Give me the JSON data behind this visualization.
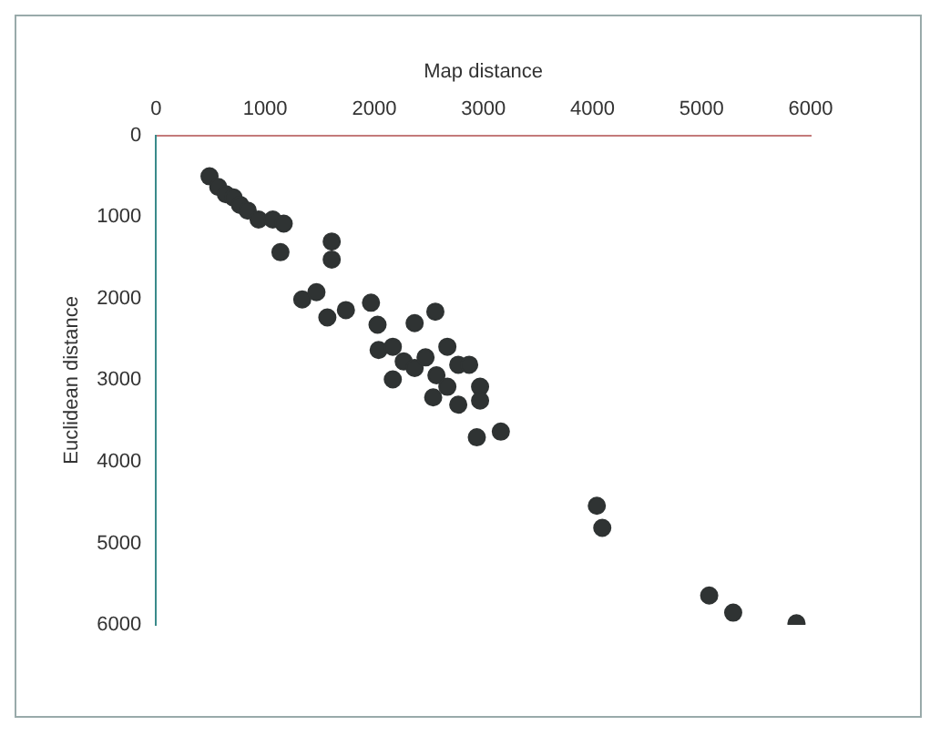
{
  "chart_data": {
    "type": "scatter",
    "xlabel": "Map distance",
    "ylabel": "Euclidean distance",
    "xlim": [
      0,
      6000
    ],
    "xticks": [
      0,
      1000,
      2000,
      3000,
      4000,
      5000,
      6000
    ],
    "ylim": [
      6000,
      0
    ],
    "yticks": [
      0,
      1000,
      2000,
      3000,
      4000,
      5000,
      6000
    ],
    "grid": false,
    "legend": false,
    "marker": "circle",
    "series": [
      {
        "color": "#2f3333",
        "x": [
          490,
          570,
          640,
          710,
          770,
          840,
          940,
          1070,
          1170,
          1140,
          1610,
          1610,
          1340,
          1470,
          1570,
          1740,
          1970,
          2030,
          2370,
          2560,
          2040,
          2170,
          2270,
          2170,
          2370,
          2470,
          2670,
          2570,
          2770,
          2870,
          2670,
          2540,
          2770,
          2970,
          2970,
          2940,
          3160,
          4040,
          4090,
          5070,
          5290,
          5870
        ],
        "values": [
          500,
          630,
          720,
          760,
          850,
          920,
          1030,
          1030,
          1080,
          1430,
          1300,
          1520,
          2010,
          1920,
          2230,
          2140,
          2050,
          2320,
          2300,
          2160,
          2630,
          2590,
          2770,
          2990,
          2850,
          2720,
          2590,
          2940,
          2810,
          2810,
          3080,
          3210,
          3300,
          3080,
          3250,
          3700,
          3630,
          4540,
          4810,
          5640,
          5850,
          5980
        ]
      }
    ]
  }
}
